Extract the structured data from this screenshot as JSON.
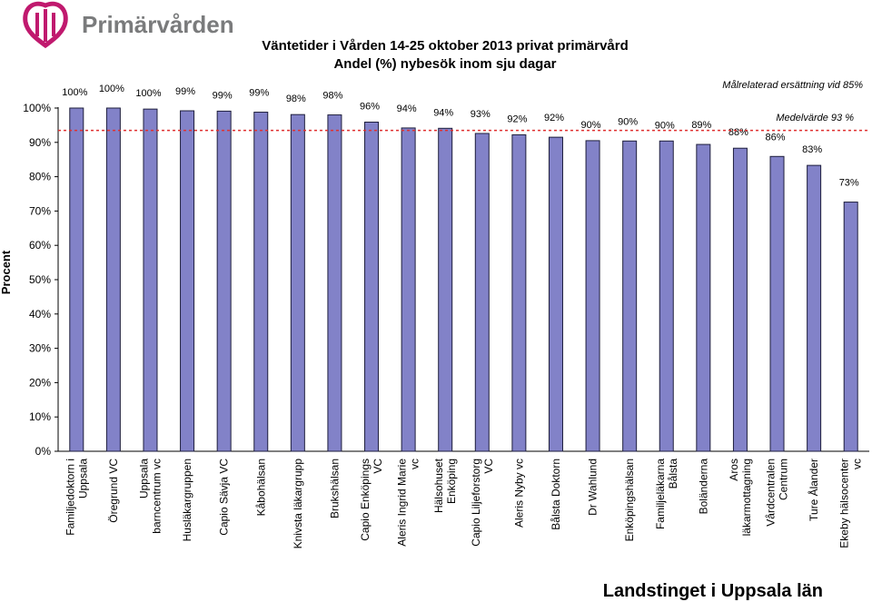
{
  "header": {
    "brand_name": "Primärvården",
    "footer_brand": "Landstinget i Uppsala län"
  },
  "colors": {
    "bar_fill": "#8282c8",
    "bar_stroke": "#1e1e3c",
    "average_line": "#e03030",
    "logo": "#c0196e"
  },
  "icons": {
    "logo": "primarvarden-heart-logo-icon"
  },
  "chart_data": {
    "type": "bar",
    "title": "Väntetider i Vården 14-25 oktober 2013 privat primärvård",
    "subtitle": "Andel (%) nybesök inom sju dagar",
    "ylabel": "Procent",
    "xlabel": "",
    "ylim": [
      0,
      100
    ],
    "yticks": [
      "0%",
      "10%",
      "20%",
      "30%",
      "40%",
      "50%",
      "60%",
      "70%",
      "80%",
      "90%",
      "100%"
    ],
    "categories": [
      [
        "Familjedoktorn i",
        "Uppsala"
      ],
      [
        "Öregrund VC"
      ],
      [
        "Uppsala",
        "barncentrum vc"
      ],
      [
        "Husläkargruppen"
      ],
      [
        "Capio Sävja VC"
      ],
      [
        "Kåbohälsan"
      ],
      [
        "Knivsta läkargrupp"
      ],
      [
        "Brukshälsan"
      ],
      [
        "Capio Enköpings",
        "VC"
      ],
      [
        "Aleris Ingrid Marie",
        "vc"
      ],
      [
        "Hälsohuset",
        "Enköping"
      ],
      [
        "Capio Liljeforstorg",
        "VC"
      ],
      [
        "Aleris Nyby vc"
      ],
      [
        "Bålsta Doktorn"
      ],
      [
        "Dr Wahlund"
      ],
      [
        "Enköpingshälsan"
      ],
      [
        "Familjeläkarna",
        "Bålsta"
      ],
      [
        "Boländerna"
      ],
      [
        "Aros",
        "läkarmottagning"
      ],
      [
        "Vårdcentralen",
        "Centrum"
      ],
      [
        "Ture Ålander"
      ],
      [
        "Ekeby hälsocenter",
        "vc"
      ]
    ],
    "values": [
      100,
      100,
      99.7,
      99.2,
      99.1,
      98.8,
      98.1,
      98.0,
      95.9,
      94.2,
      94.1,
      92.6,
      92.2,
      91.5,
      90.5,
      90.4,
      90.4,
      89.4,
      88.3,
      85.9,
      83.3,
      72.6
    ],
    "data_labels": [
      "100%",
      "100%",
      "100%",
      "99%",
      "99%",
      "99%",
      "98%",
      "98%",
      "96%",
      "94%",
      "94%",
      "93%",
      "92%",
      "92%",
      "90%",
      "90%",
      "90%",
      "89%",
      "88%",
      "86%",
      "83%",
      "73%"
    ],
    "reference_lines": [
      {
        "value": 93.5,
        "label": "Medelvärde 93 %",
        "style": "dashed"
      }
    ],
    "annotations": [
      "Målrelaterad ersättning vid 85%"
    ],
    "grid": false,
    "legend": "none"
  }
}
